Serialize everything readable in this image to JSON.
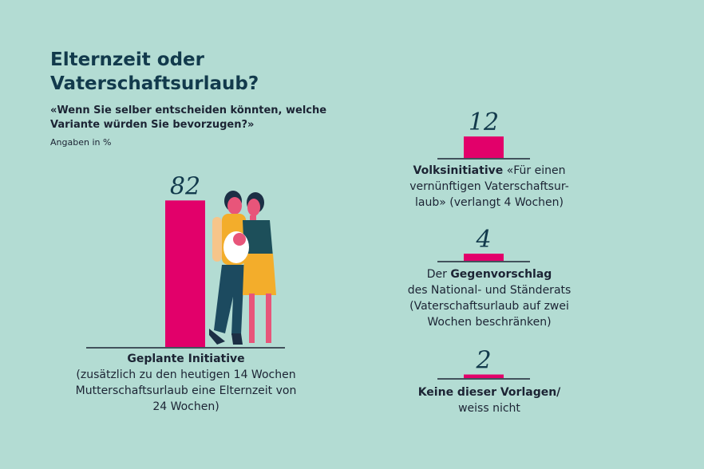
{
  "title": "Elternzeit oder Vaterschaftsurlaub?",
  "subtitle": "«Wenn Sie selber entscheiden könnten, welche Variante würden Sie bevorzugen?»",
  "unit_note": "Angaben in %",
  "colors": {
    "bar": "#e2006a",
    "background": "#b3dcd3",
    "text": "#1c2f45"
  },
  "chart_data": {
    "type": "bar",
    "categories": [
      "Geplante Initiative",
      "Volksinitiative «Für einen vernünftigen Vaterschaftsurlaub»",
      "Der Gegenvorschlag des National- und Ständerats",
      "Keine dieser Vorlagen/ weiss nicht"
    ],
    "values": [
      82,
      12,
      4,
      2
    ],
    "data_labels": [
      "82",
      "12",
      "4",
      "2"
    ],
    "unit": "%"
  },
  "captions": [
    {
      "bold": "Geplante Initiative",
      "rest": "(zusätzlich zu den heutigen 14 Wochen Mutterschaftsurlaub eine Elternzeit von 24 Wochen)"
    },
    {
      "bold": "Volksinitiative",
      "rest": " «Für einen vernünftigen Vaterschaftsur-laub» (verlangt 4 Wochen)"
    },
    {
      "pre": "Der ",
      "bold": "Gegenvorschlag",
      "rest": "des National- und Ständerats (Vaterschaftsurlaub auf zwei Wochen beschränken)"
    },
    {
      "bold": "Keine dieser Vorlagen/",
      "rest": "weiss nicht"
    }
  ]
}
